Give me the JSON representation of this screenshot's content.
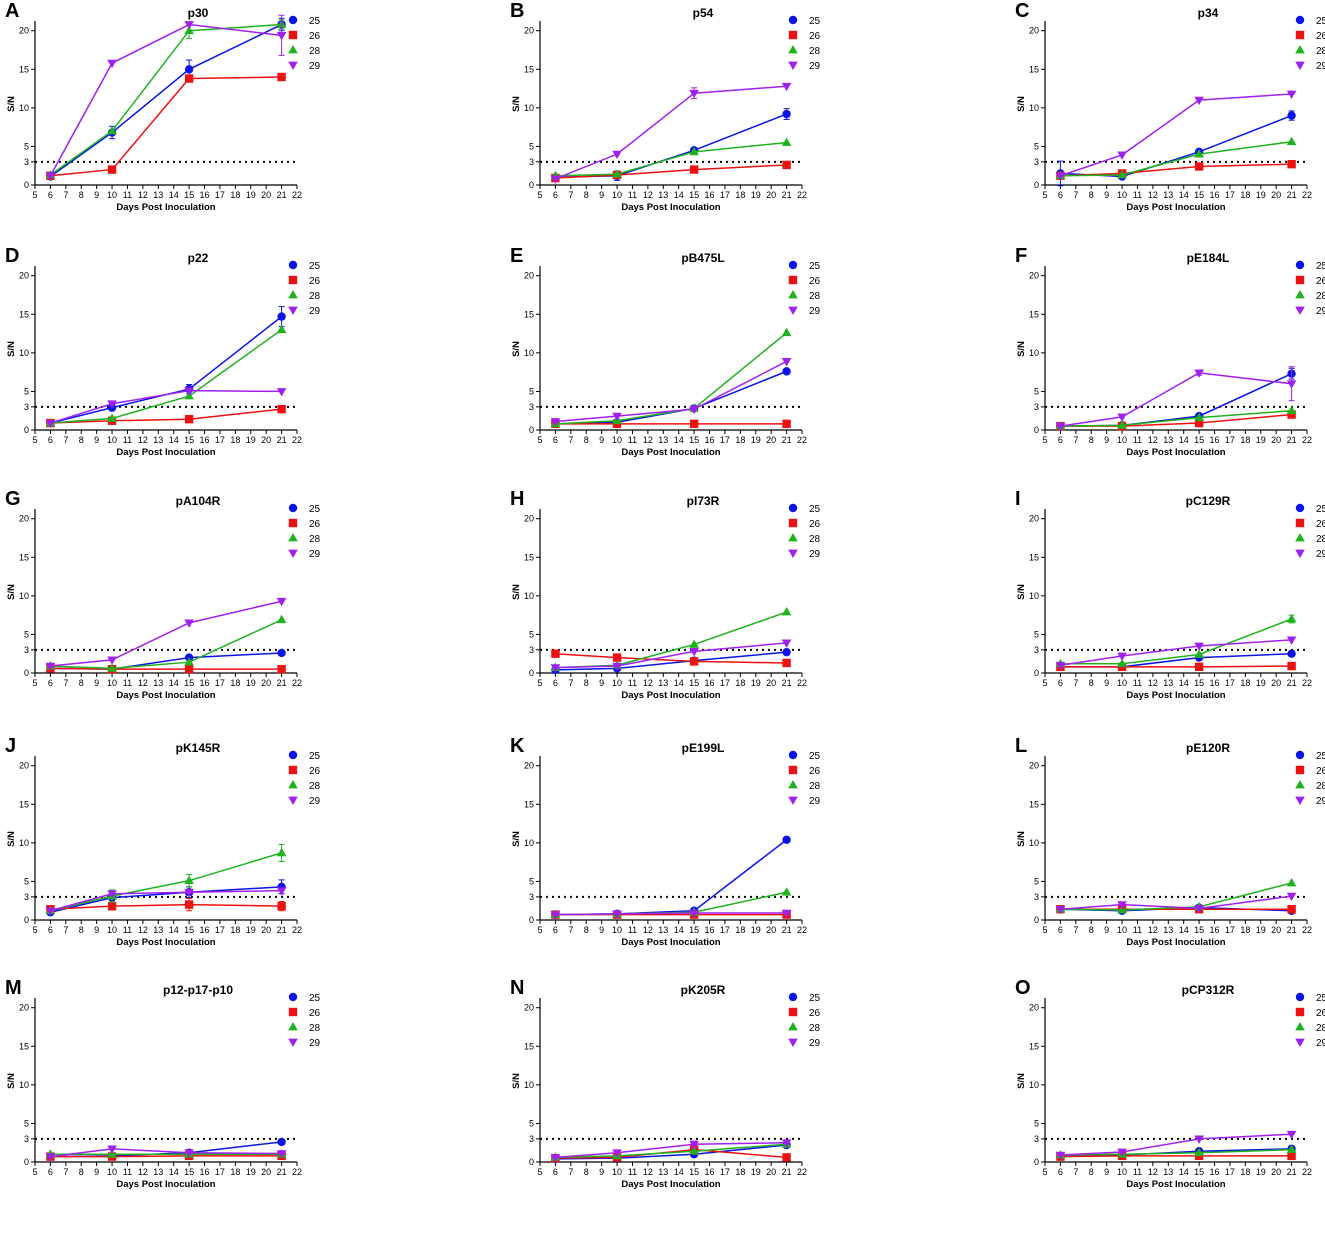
{
  "figure": {
    "x_label": "Days Post Inoculation",
    "y_label": "S/N",
    "x_ticks": [
      5,
      6,
      7,
      8,
      9,
      10,
      11,
      12,
      13,
      14,
      15,
      16,
      17,
      18,
      19,
      20,
      21,
      22
    ],
    "y_ticks": [
      0,
      3,
      5,
      10,
      15,
      20
    ],
    "xlim": [
      5,
      22
    ],
    "ylim": [
      0,
      21
    ],
    "threshold": 3,
    "series_names": [
      "25",
      "26",
      "28",
      "29"
    ],
    "colors": {
      "25": "#0a14e6",
      "26": "#ee1111",
      "28": "#1fb21f",
      "29": "#a020f0"
    },
    "markers": {
      "25": "circle",
      "26": "square",
      "28": "triangle-up",
      "29": "triangle-down"
    }
  },
  "chart_data": [
    {
      "panel": "A",
      "type": "line",
      "title": "p30",
      "x": [
        6,
        10,
        15,
        21
      ],
      "series": [
        {
          "name": "25",
          "values": [
            1.1,
            6.8,
            15.0,
            20.8
          ],
          "err": [
            0.2,
            0.8,
            1.2,
            0.8
          ]
        },
        {
          "name": "26",
          "values": [
            1.2,
            2.0,
            13.8,
            14.0
          ],
          "err": [
            0,
            0,
            0,
            0
          ]
        },
        {
          "name": "28",
          "values": [
            1.3,
            7.0,
            20.0,
            20.8
          ],
          "err": [
            0,
            0,
            1.0,
            0.6
          ]
        },
        {
          "name": "29",
          "values": [
            1.2,
            15.8,
            20.8,
            19.4
          ],
          "err": [
            0,
            0,
            0,
            2.6
          ]
        }
      ]
    },
    {
      "panel": "B",
      "type": "line",
      "title": "p54",
      "x": [
        6,
        10,
        15,
        21
      ],
      "series": [
        {
          "name": "25",
          "values": [
            1.0,
            1.2,
            4.5,
            9.2
          ],
          "err": [
            0.1,
            0.6,
            0.3,
            0.7
          ]
        },
        {
          "name": "26",
          "values": [
            0.9,
            1.3,
            2.0,
            2.6
          ],
          "err": [
            0,
            0,
            0,
            0
          ]
        },
        {
          "name": "28",
          "values": [
            1.2,
            1.4,
            4.3,
            5.5
          ],
          "err": [
            0,
            0,
            0,
            0
          ]
        },
        {
          "name": "29",
          "values": [
            0.8,
            4.0,
            11.9,
            12.8
          ],
          "err": [
            0,
            0,
            0.7,
            0
          ]
        }
      ]
    },
    {
      "panel": "C",
      "type": "line",
      "title": "p34",
      "x": [
        6,
        10,
        15,
        21
      ],
      "series": [
        {
          "name": "25",
          "values": [
            1.5,
            1.1,
            4.3,
            9.0
          ],
          "err": [
            1.6,
            0.2,
            0.2,
            0.6
          ]
        },
        {
          "name": "26",
          "values": [
            1.2,
            1.5,
            2.4,
            2.7
          ],
          "err": [
            0,
            0,
            0,
            0
          ]
        },
        {
          "name": "28",
          "values": [
            1.2,
            1.3,
            4.0,
            5.6
          ],
          "err": [
            0,
            0,
            0,
            0
          ]
        },
        {
          "name": "29",
          "values": [
            1.2,
            3.9,
            11.0,
            11.8
          ],
          "err": [
            0,
            0,
            0,
            0
          ]
        }
      ]
    },
    {
      "panel": "D",
      "type": "line",
      "title": "p22",
      "x": [
        6,
        10,
        15,
        21
      ],
      "series": [
        {
          "name": "25",
          "values": [
            0.9,
            2.9,
            5.3,
            14.7
          ],
          "err": [
            0.1,
            0.4,
            0.6,
            1.3
          ]
        },
        {
          "name": "26",
          "values": [
            0.9,
            1.2,
            1.4,
            2.7
          ],
          "err": [
            0,
            0,
            0,
            0
          ]
        },
        {
          "name": "28",
          "values": [
            0.9,
            1.5,
            4.4,
            13.0
          ],
          "err": [
            0,
            0,
            0,
            0
          ]
        },
        {
          "name": "29",
          "values": [
            0.9,
            3.4,
            5.1,
            5.0
          ],
          "err": [
            0,
            0,
            0,
            0
          ]
        }
      ]
    },
    {
      "panel": "E",
      "type": "line",
      "title": "pB475L",
      "x": [
        6,
        10,
        15,
        21
      ],
      "series": [
        {
          "name": "25",
          "values": [
            0.8,
            1.0,
            2.8,
            7.6
          ],
          "err": [
            0,
            0,
            0,
            0
          ]
        },
        {
          "name": "26",
          "values": [
            0.8,
            0.8,
            0.8,
            0.8
          ],
          "err": [
            0,
            0,
            0,
            0
          ]
        },
        {
          "name": "28",
          "values": [
            0.8,
            1.2,
            2.8,
            12.6
          ],
          "err": [
            0,
            0,
            0,
            0
          ]
        },
        {
          "name": "29",
          "values": [
            1.1,
            1.8,
            2.7,
            8.9
          ],
          "err": [
            0,
            0,
            0,
            0
          ]
        }
      ]
    },
    {
      "panel": "F",
      "type": "line",
      "title": "pE184L",
      "x": [
        6,
        10,
        15,
        21
      ],
      "series": [
        {
          "name": "25",
          "values": [
            0.5,
            0.6,
            1.8,
            7.3
          ],
          "err": [
            0,
            0,
            0.2,
            0.7
          ]
        },
        {
          "name": "26",
          "values": [
            0.5,
            0.5,
            0.9,
            2.0
          ],
          "err": [
            0,
            0,
            0,
            0
          ]
        },
        {
          "name": "28",
          "values": [
            0.5,
            0.6,
            1.6,
            2.5
          ],
          "err": [
            0,
            0,
            0,
            0
          ]
        },
        {
          "name": "29",
          "values": [
            0.5,
            1.7,
            7.4,
            6.0
          ],
          "err": [
            0,
            0,
            0.3,
            2.2
          ]
        }
      ]
    },
    {
      "panel": "G",
      "type": "line",
      "title": "pA104R",
      "x": [
        6,
        10,
        15,
        21
      ],
      "series": [
        {
          "name": "25",
          "values": [
            0.6,
            0.5,
            2.0,
            2.6
          ],
          "err": [
            0,
            0,
            0,
            0
          ]
        },
        {
          "name": "26",
          "values": [
            0.6,
            0.5,
            0.5,
            0.5
          ],
          "err": [
            0,
            0,
            0,
            0
          ]
        },
        {
          "name": "28",
          "values": [
            0.9,
            0.6,
            1.4,
            6.9
          ],
          "err": [
            0,
            0,
            0,
            0
          ]
        },
        {
          "name": "29",
          "values": [
            0.9,
            1.7,
            6.5,
            9.3
          ],
          "err": [
            0,
            0,
            0,
            0
          ]
        }
      ]
    },
    {
      "panel": "H",
      "type": "line",
      "title": "pI73R",
      "x": [
        6,
        10,
        15,
        21
      ],
      "series": [
        {
          "name": "25",
          "values": [
            0.4,
            0.6,
            1.6,
            2.7
          ],
          "err": [
            0,
            0,
            0,
            0
          ]
        },
        {
          "name": "26",
          "values": [
            2.5,
            2.0,
            1.5,
            1.3
          ],
          "err": [
            0,
            0,
            0,
            0
          ]
        },
        {
          "name": "28",
          "values": [
            0.7,
            1.0,
            3.7,
            7.9
          ],
          "err": [
            0,
            0,
            0,
            0
          ]
        },
        {
          "name": "29",
          "values": [
            0.7,
            0.9,
            2.8,
            3.9
          ],
          "err": [
            0,
            0,
            0,
            0
          ]
        }
      ]
    },
    {
      "panel": "I",
      "type": "line",
      "title": "pC129R",
      "x": [
        6,
        10,
        15,
        21
      ],
      "series": [
        {
          "name": "25",
          "values": [
            0.8,
            0.8,
            2.0,
            2.5
          ],
          "err": [
            0,
            0,
            0,
            0
          ]
        },
        {
          "name": "26",
          "values": [
            0.8,
            0.8,
            0.8,
            0.9
          ],
          "err": [
            0,
            0,
            0,
            0
          ]
        },
        {
          "name": "28",
          "values": [
            1.2,
            1.2,
            2.4,
            7.0
          ],
          "err": [
            0,
            0,
            0,
            0.5
          ]
        },
        {
          "name": "29",
          "values": [
            1.0,
            2.2,
            3.5,
            4.3
          ],
          "err": [
            0,
            0,
            0,
            0
          ]
        }
      ]
    },
    {
      "panel": "J",
      "type": "line",
      "title": "pK145R",
      "x": [
        6,
        10,
        15,
        21
      ],
      "series": [
        {
          "name": "25",
          "values": [
            1.0,
            2.9,
            3.6,
            4.3
          ],
          "err": [
            0,
            0.6,
            0.7,
            0.9
          ]
        },
        {
          "name": "26",
          "values": [
            1.4,
            1.8,
            2.0,
            1.8
          ],
          "err": [
            0,
            0.5,
            0.8,
            0.6
          ]
        },
        {
          "name": "28",
          "values": [
            1.2,
            3.1,
            5.1,
            8.7
          ],
          "err": [
            0,
            0.8,
            0.8,
            1.1
          ]
        },
        {
          "name": "29",
          "values": [
            1.2,
            3.4,
            3.6,
            3.8
          ],
          "err": [
            0,
            0,
            0,
            0
          ]
        }
      ]
    },
    {
      "panel": "K",
      "type": "line",
      "title": "pE199L",
      "x": [
        6,
        10,
        15,
        21
      ],
      "series": [
        {
          "name": "25",
          "values": [
            0.7,
            0.8,
            1.2,
            10.4
          ],
          "err": [
            0,
            0,
            0,
            0
          ]
        },
        {
          "name": "26",
          "values": [
            0.7,
            0.7,
            0.7,
            0.7
          ],
          "err": [
            0,
            0,
            0,
            0
          ]
        },
        {
          "name": "28",
          "values": [
            0.7,
            0.8,
            1.0,
            3.6
          ],
          "err": [
            0,
            0,
            0,
            0
          ]
        },
        {
          "name": "29",
          "values": [
            0.7,
            0.8,
            0.9,
            0.9
          ],
          "err": [
            0,
            0,
            0,
            0
          ]
        }
      ]
    },
    {
      "panel": "L",
      "type": "line",
      "title": "pE120R",
      "x": [
        6,
        10,
        15,
        21
      ],
      "series": [
        {
          "name": "25",
          "values": [
            1.4,
            1.2,
            1.6,
            1.2
          ],
          "err": [
            0,
            0,
            0,
            0
          ]
        },
        {
          "name": "26",
          "values": [
            1.4,
            1.4,
            1.4,
            1.4
          ],
          "err": [
            0,
            0,
            0,
            0
          ]
        },
        {
          "name": "28",
          "values": [
            1.4,
            1.3,
            1.7,
            4.8
          ],
          "err": [
            0,
            0,
            0,
            0
          ]
        },
        {
          "name": "29",
          "values": [
            1.4,
            2.0,
            1.5,
            3.1
          ],
          "err": [
            0,
            0,
            0,
            0
          ]
        }
      ]
    },
    {
      "panel": "M",
      "type": "line",
      "title": "p12-p17-p10",
      "x": [
        6,
        10,
        15,
        21
      ],
      "series": [
        {
          "name": "25",
          "values": [
            0.7,
            0.8,
            1.2,
            2.6
          ],
          "err": [
            0,
            0,
            0,
            0
          ]
        },
        {
          "name": "26",
          "values": [
            0.7,
            0.7,
            0.8,
            0.8
          ],
          "err": [
            0,
            0,
            0,
            0
          ]
        },
        {
          "name": "28",
          "values": [
            1.0,
            1.0,
            1.0,
            1.0
          ],
          "err": [
            0,
            0,
            0,
            0
          ]
        },
        {
          "name": "29",
          "values": [
            0.7,
            1.7,
            1.2,
            1.1
          ],
          "err": [
            0,
            0,
            0,
            0
          ]
        }
      ]
    },
    {
      "panel": "N",
      "type": "line",
      "title": "pK205R",
      "x": [
        6,
        10,
        15,
        21
      ],
      "series": [
        {
          "name": "25",
          "values": [
            0.4,
            0.5,
            1.0,
            2.2
          ],
          "err": [
            0,
            0,
            0,
            0
          ]
        },
        {
          "name": "26",
          "values": [
            0.5,
            0.6,
            1.6,
            0.6
          ],
          "err": [
            0,
            0,
            0.6,
            0
          ]
        },
        {
          "name": "28",
          "values": [
            0.6,
            0.8,
            1.4,
            2.3
          ],
          "err": [
            0,
            0,
            0,
            0
          ]
        },
        {
          "name": "29",
          "values": [
            0.6,
            1.2,
            2.3,
            2.5
          ],
          "err": [
            0,
            0,
            0.4,
            0
          ]
        }
      ]
    },
    {
      "panel": "O",
      "type": "line",
      "title": "pCP312R",
      "x": [
        6,
        10,
        15,
        21
      ],
      "series": [
        {
          "name": "25",
          "values": [
            0.7,
            0.9,
            1.4,
            1.7
          ],
          "err": [
            0,
            0,
            0,
            0
          ]
        },
        {
          "name": "26",
          "values": [
            0.7,
            0.8,
            0.8,
            0.8
          ],
          "err": [
            0,
            0,
            0,
            0
          ]
        },
        {
          "name": "28",
          "values": [
            0.9,
            1.0,
            1.2,
            1.6
          ],
          "err": [
            0,
            0,
            0,
            0
          ]
        },
        {
          "name": "29",
          "values": [
            0.9,
            1.3,
            3.0,
            3.6
          ],
          "err": [
            0,
            0,
            0,
            0
          ]
        }
      ]
    }
  ]
}
